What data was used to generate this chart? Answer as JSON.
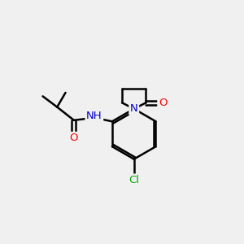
{
  "background_color": "#f0f0f0",
  "bond_color": "#000000",
  "atom_colors": {
    "O": "#ff0000",
    "N": "#0000cc",
    "Cl": "#00aa00",
    "H": "#666666",
    "C": "#000000"
  },
  "figsize": [
    3.0,
    3.0
  ],
  "dpi": 100
}
